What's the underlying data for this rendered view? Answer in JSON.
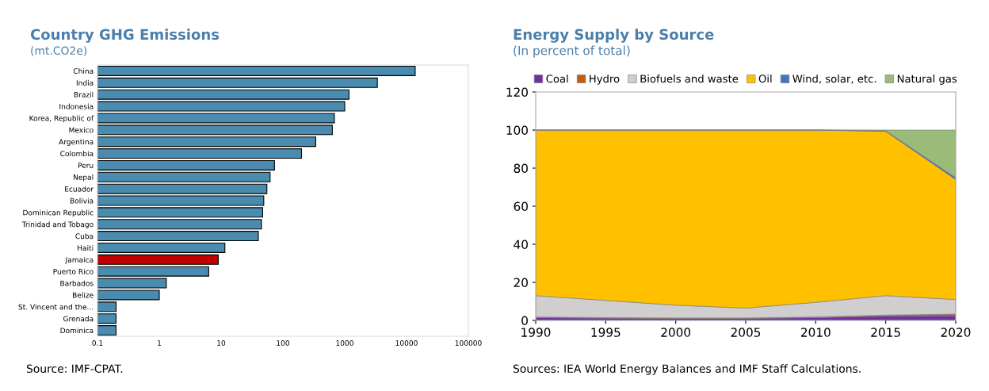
{
  "chart_data": [
    {
      "type": "bar",
      "orientation": "horizontal",
      "title": "Country GHG Emissions",
      "subtitle": "(mt.CO2e)",
      "categories": [
        "China",
        "India",
        "Brazil",
        "Indonesia",
        "Korea, Republic of",
        "Mexico",
        "Argentina",
        "Colombia",
        "Peru",
        "Nepal",
        "Ecuador",
        "Bolivia",
        "Dominican Republic",
        "Trinidad and Tobago",
        "Cuba",
        "Haiti",
        "Jamaica",
        "Puerto Rico",
        "Barbados",
        "Belize",
        "St. Vincent and the...",
        "Grenada",
        "Dominica"
      ],
      "values": [
        13800,
        3370,
        1170,
        1000,
        680,
        630,
        340,
        200,
        73,
        62,
        55,
        49,
        47,
        45,
        40,
        11.5,
        9,
        6.3,
        1.3,
        1.0,
        0.2,
        0.2,
        0.2
      ],
      "colors": [
        "#4a8bb0",
        "#4a8bb0",
        "#4a8bb0",
        "#4a8bb0",
        "#4a8bb0",
        "#4a8bb0",
        "#4a8bb0",
        "#4a8bb0",
        "#4a8bb0",
        "#4a8bb0",
        "#4a8bb0",
        "#4a8bb0",
        "#4a8bb0",
        "#4a8bb0",
        "#4a8bb0",
        "#4a8bb0",
        "#c00000",
        "#4a8bb0",
        "#4a8bb0",
        "#4a8bb0",
        "#4a8bb0",
        "#4a8bb0",
        "#4a8bb0"
      ],
      "log": "x",
      "xlim": [
        0.1,
        100000
      ],
      "xticks": [
        0.1,
        1,
        10,
        100,
        1000,
        10000,
        100000
      ],
      "grid": false,
      "annotations": [
        "Source: IMF-CPAT."
      ]
    },
    {
      "type": "area",
      "stacked": true,
      "title": "Energy Supply by Source",
      "subtitle": "(In percent of total)",
      "x": [
        1990,
        1995,
        2000,
        2005,
        2010,
        2015,
        2020
      ],
      "series": [
        {
          "name": "Coal",
          "color": "#7030a0",
          "values": [
            1.5,
            1.2,
            1.0,
            1.0,
            1.5,
            2.3,
            2.5
          ]
        },
        {
          "name": "Hydro",
          "color": "#c55a11",
          "values": [
            0.3,
            0.3,
            0.3,
            0.3,
            0.3,
            0.5,
            0.8
          ]
        },
        {
          "name": "Biofuels and waste",
          "color": "#d0cece",
          "values": [
            11.2,
            9.0,
            6.7,
            5.2,
            7.7,
            10.2,
            7.7
          ]
        },
        {
          "name": "Oil",
          "color": "#ffc000",
          "values": [
            87.0,
            89.5,
            92.0,
            93.5,
            90.5,
            86.3,
            63.0
          ]
        },
        {
          "name": "Wind, solar, etc.",
          "color": "#4472c4",
          "values": [
            0,
            0,
            0,
            0,
            0,
            0.4,
            1.0
          ]
        },
        {
          "name": "Natural gas",
          "color": "#9bbb78",
          "values": [
            0,
            0,
            0,
            0,
            0,
            0.3,
            25.0
          ]
        }
      ],
      "xlim": [
        1990,
        2020
      ],
      "xticks": [
        1990,
        1995,
        2000,
        2005,
        2010,
        2015,
        2020
      ],
      "ylim": [
        0,
        120
      ],
      "yticks": [
        0,
        20,
        40,
        60,
        80,
        100,
        120
      ],
      "grid": false,
      "legend": "top",
      "annotations": [
        "Sources: IEA World Energy Balances and IMF Staff Calculations."
      ]
    }
  ]
}
